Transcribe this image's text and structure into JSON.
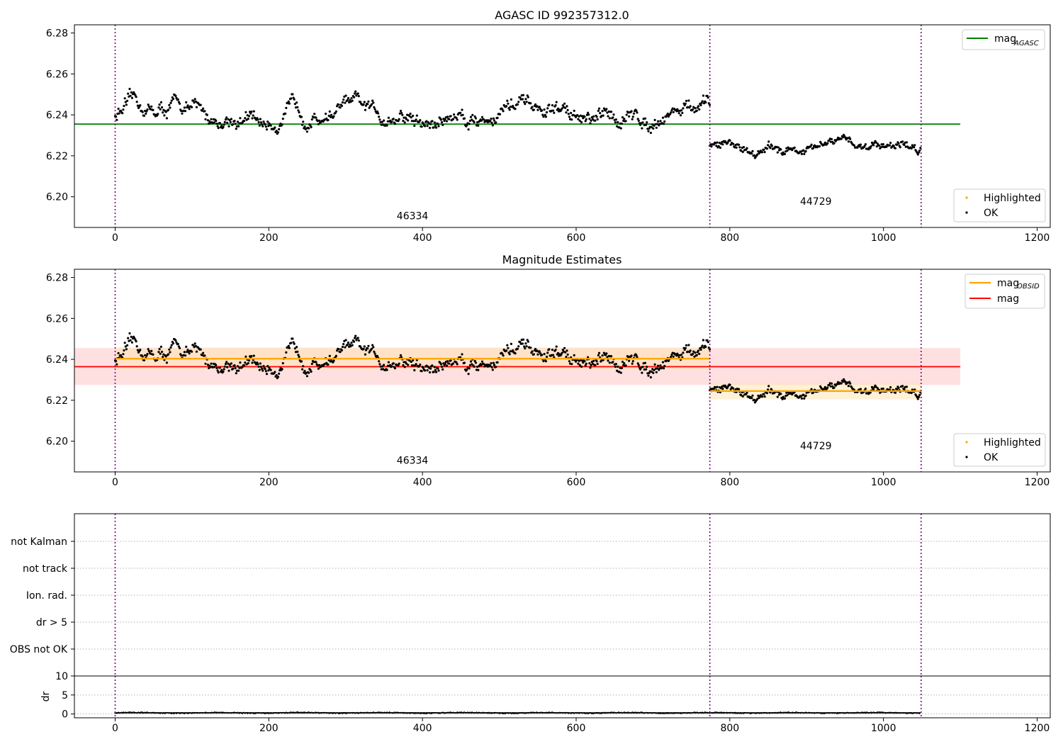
{
  "figure_title": "AGASC ID 992357312.0",
  "colors": {
    "point_ok": "#000000",
    "point_highlighted": "#ffa500",
    "mag_agasc": "#008000",
    "mag_obsid": "#ffa500",
    "mag": "#ff0000",
    "mag_band": "#ffcccc",
    "obsid_band": "#ffe4b5",
    "obs_boundary": "#800080"
  },
  "chart_data": [
    {
      "type": "scatter",
      "title": "AGASC ID 992357312.0",
      "xlim": [
        -53,
        1100
      ],
      "ylim": [
        6.185,
        6.284
      ],
      "xticks": [
        0,
        200,
        400,
        600,
        800,
        1000,
        1200
      ],
      "yticks": [
        6.2,
        6.22,
        6.24,
        6.26,
        6.28
      ],
      "obs_boundaries": [
        0,
        774,
        1049
      ],
      "obs_labels": [
        {
          "text": "46334",
          "x": 387,
          "y": 6.189
        },
        {
          "text": "44729",
          "x": 912,
          "y": 6.196
        }
      ],
      "lines": [
        {
          "name": "mag",
          "sub": "AGASC",
          "y": 6.2355,
          "x": [
            -53,
            1100
          ],
          "color_key": "mag_agasc"
        }
      ],
      "legend_top": "top-right",
      "legend_bottom": "bottom-right",
      "legend_bottom_items": [
        "Highlighted",
        "OK"
      ],
      "segments": [
        {
          "x_start": 0,
          "x_end": 774,
          "mean": 6.24,
          "amp": 0.007,
          "noise": 0.003
        },
        {
          "x_start": 774,
          "x_end": 1049,
          "mean": 6.2245,
          "amp": 0.004,
          "noise": 0.002
        }
      ]
    },
    {
      "type": "scatter",
      "title": "Magnitude Estimates",
      "xlim": [
        -53,
        1100
      ],
      "ylim": [
        6.185,
        6.284
      ],
      "xticks": [
        0,
        200,
        400,
        600,
        800,
        1000,
        1200
      ],
      "yticks": [
        6.2,
        6.22,
        6.24,
        6.26,
        6.28
      ],
      "obs_boundaries": [
        0,
        774,
        1049
      ],
      "obs_labels": [
        {
          "text": "46334",
          "x": 387,
          "y": 6.189
        },
        {
          "text": "44729",
          "x": 912,
          "y": 6.196
        }
      ],
      "mag_band": {
        "y_low": 6.2275,
        "y_high": 6.2455
      },
      "mag_line": {
        "y": 6.2364
      },
      "obsid_segments": [
        {
          "x_start": 0,
          "x_end": 774,
          "y": 6.2403,
          "y_low": 6.2348,
          "y_high": 6.2458
        },
        {
          "x_start": 774,
          "x_end": 1049,
          "y": 6.2245,
          "y_low": 6.2205,
          "y_high": 6.2285
        }
      ],
      "legend_top": "top-right",
      "legend_top_items": [
        {
          "name": "mag",
          "sub": "OBSID",
          "color_key": "mag_obsid"
        },
        {
          "name": "mag",
          "sub": "",
          "color_key": "mag"
        }
      ],
      "legend_bottom": "bottom-right",
      "legend_bottom_items": [
        "Highlighted",
        "OK"
      ]
    },
    {
      "type": "scatter",
      "title": "",
      "categories": [
        "not Kalman",
        "not track",
        "Ion. rad.",
        "dr > 5",
        "OBS not OK"
      ],
      "flagged_points": [],
      "obs_boundaries": [
        0,
        774,
        1049
      ],
      "grid": "dotted"
    },
    {
      "type": "line",
      "ylabel": "dr",
      "xlim": [
        -53,
        1100
      ],
      "ylim": [
        -1,
        10
      ],
      "yticks": [
        0,
        5,
        10
      ],
      "xticks": [
        0,
        200,
        400,
        600,
        800,
        1000,
        1200
      ],
      "obs_boundaries": [
        0,
        774,
        1049
      ],
      "dr_level": 0.3,
      "dr_noise": 0.15
    }
  ]
}
